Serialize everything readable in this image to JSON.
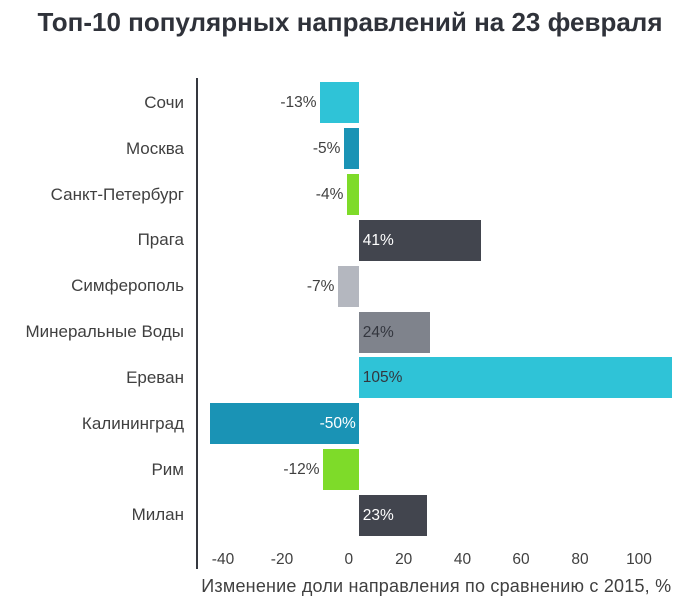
{
  "chart_data": {
    "type": "bar",
    "orientation": "horizontal",
    "title": "Топ-10 популярных направлений на 23 февраля",
    "xlabel": "Изменение доли направления по сравнению с 2015, %",
    "ylabel": "",
    "xlim": [
      -54,
      107
    ],
    "grid": false,
    "legend": false,
    "x_tick_values": [
      -40,
      -20,
      0,
      20,
      40,
      60,
      80,
      100
    ],
    "x_tick_labels": [
      "-40",
      "-20",
      "0",
      "20",
      "40",
      "60",
      "80",
      "100"
    ],
    "categories": [
      "Сочи",
      "Москва",
      "Санкт-Петербург",
      "Прага",
      "Симферополь",
      "Минеральные Воды",
      "Ереван",
      "Калининград",
      "Рим",
      "Милан"
    ],
    "values": [
      -13,
      -5,
      -4,
      41,
      -7,
      24,
      105,
      -50,
      -12,
      23
    ],
    "bars": [
      {
        "slug": "sochi",
        "category": "Сочи",
        "value": -13,
        "label": "-13%",
        "color": "#2fc3d7",
        "label_placement": "outside-end",
        "label_tone": "dark"
      },
      {
        "slug": "moskva",
        "category": "Москва",
        "value": -5,
        "label": "-5%",
        "color": "#1a93b5",
        "label_placement": "outside-end",
        "label_tone": "dark"
      },
      {
        "slug": "sankt-peterburg",
        "category": "Санкт-Петербург",
        "value": -4,
        "label": "-4%",
        "color": "#7edb29",
        "label_placement": "outside-end",
        "label_tone": "dark"
      },
      {
        "slug": "praga",
        "category": "Прага",
        "value": 41,
        "label": "41%",
        "color": "#42454e",
        "label_placement": "inside-base",
        "label_tone": "light"
      },
      {
        "slug": "simferopol",
        "category": "Симферополь",
        "value": -7,
        "label": "-7%",
        "color": "#b4b7bf",
        "label_placement": "outside-end",
        "label_tone": "dark"
      },
      {
        "slug": "mineralnye-vody",
        "category": "Минеральные Воды",
        "value": 24,
        "label": "24%",
        "color": "#7f838c",
        "label_placement": "inside-base",
        "label_tone": "dark"
      },
      {
        "slug": "erevan",
        "category": "Ереван",
        "value": 105,
        "label": "105%",
        "color": "#2fc3d7",
        "label_placement": "inside-base",
        "label_tone": "dark"
      },
      {
        "slug": "kaliningrad",
        "category": "Калининград",
        "value": -50,
        "label": "-50%",
        "color": "#1a93b5",
        "label_placement": "inside-base",
        "label_tone": "light"
      },
      {
        "slug": "rim",
        "category": "Рим",
        "value": -12,
        "label": "-12%",
        "color": "#7edb29",
        "label_placement": "outside-end",
        "label_tone": "dark"
      },
      {
        "slug": "milan",
        "category": "Милан",
        "value": 23,
        "label": "23%",
        "color": "#42454e",
        "label_placement": "inside-base",
        "label_tone": "light"
      }
    ]
  },
  "colors": {
    "title_text": "#2f323a",
    "axis_line": "#35383f",
    "axis_text": "#404040",
    "label_light": "#ffffff",
    "label_dark": "#33363e"
  }
}
